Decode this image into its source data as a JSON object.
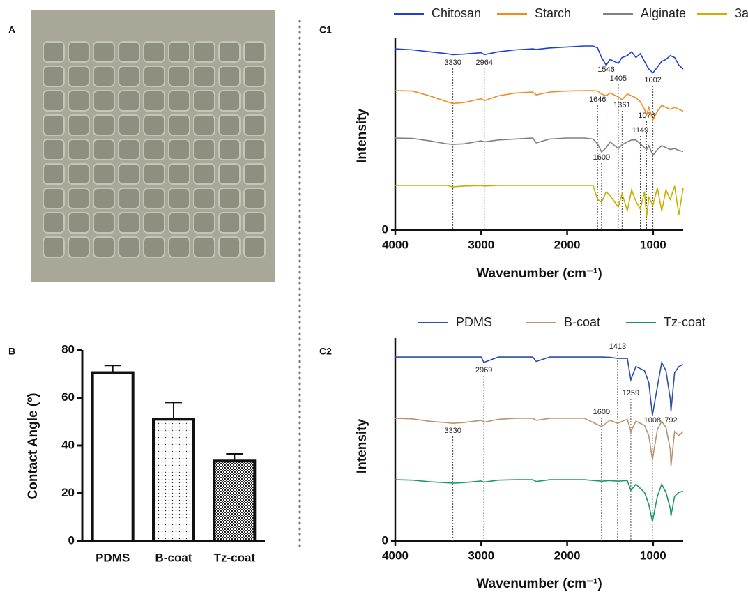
{
  "chart_data": [
    {
      "type": "bar",
      "panel": "B",
      "ylabel": "Contact Angle (º)",
      "categories": [
        "PDMS",
        "B-coat",
        "Tz-coat"
      ],
      "values": [
        70.5,
        51,
        33.5
      ],
      "errors": [
        3,
        7,
        3
      ],
      "ylim": [
        0,
        80
      ],
      "yticks": [
        0,
        20,
        40,
        60,
        80
      ]
    },
    {
      "type": "line",
      "panel": "C1",
      "xlabel": "Wavenumber (cm⁻¹)",
      "ylabel": "Intensity",
      "xlim": [
        4000,
        650
      ],
      "xticks": [
        4000,
        3000,
        2000,
        1000
      ],
      "ylim": [
        0,
        100
      ],
      "yticks": [
        0
      ],
      "annotations": [
        3330,
        2964,
        1546,
        1405,
        1002,
        1646,
        1361,
        1076,
        1149,
        1600
      ],
      "x": [
        4000,
        3800,
        3600,
        3400,
        3330,
        3200,
        3000,
        2964,
        2800,
        2600,
        2400,
        2360,
        2200,
        2000,
        1800,
        1700,
        1646,
        1600,
        1546,
        1500,
        1405,
        1361,
        1300,
        1250,
        1200,
        1149,
        1100,
        1076,
        1050,
        1002,
        950,
        900,
        850,
        800,
        750,
        700,
        650
      ],
      "series": [
        {
          "name": "Chitosan",
          "color": "#1d3fd6",
          "values": [
            94.5,
            94,
            93,
            92,
            91.5,
            91.8,
            92.5,
            91.5,
            93,
            94,
            94.5,
            94.2,
            95,
            95.5,
            96,
            96,
            95,
            90,
            86,
            89,
            87,
            90,
            91,
            93,
            90,
            92,
            88,
            86,
            84,
            82,
            85,
            88,
            89,
            91,
            90,
            86,
            84
          ]
        },
        {
          "name": "Starch",
          "color": "#f28a22",
          "values": [
            72.7,
            72.5,
            70,
            67,
            66,
            66.5,
            68.5,
            67.5,
            70,
            71.5,
            72,
            70.5,
            72,
            72.5,
            72.7,
            72.7,
            72.5,
            71,
            70,
            71.5,
            69.5,
            68,
            71,
            70,
            69,
            67,
            63,
            60,
            64,
            57.5,
            62,
            65,
            64,
            63,
            64,
            63,
            62
          ]
        },
        {
          "name": "Alginate",
          "color": "#808080",
          "values": [
            48,
            47.8,
            46.5,
            45,
            44.7,
            45,
            46.5,
            46,
            47,
            47.5,
            48,
            45.5,
            47.5,
            48,
            48,
            47.5,
            45,
            40.7,
            43,
            46,
            42.5,
            44.5,
            46,
            47,
            47,
            45,
            43,
            42,
            44,
            39,
            42,
            44,
            43,
            42,
            42.5,
            41.5,
            41
          ]
        },
        {
          "name": "3a",
          "color": "#c7b000",
          "values": [
            23.3,
            23.3,
            23.3,
            23.3,
            22.5,
            23,
            23.2,
            23,
            23.3,
            23.3,
            23.3,
            23.3,
            23.3,
            23.3,
            23.3,
            23.3,
            16,
            14.5,
            20,
            18,
            12,
            19,
            10,
            21,
            15,
            11,
            20,
            7,
            17,
            13,
            22,
            10,
            21,
            16,
            23,
            8,
            22
          ]
        }
      ]
    },
    {
      "type": "line",
      "panel": "C2",
      "xlabel": "Wavenumber (cm⁻¹)",
      "ylabel": "Intensity",
      "xlim": [
        4000,
        650
      ],
      "xticks": [
        4000,
        3000,
        2000,
        1000
      ],
      "ylim": [
        0,
        100
      ],
      "yticks": [
        0
      ],
      "annotations": [
        2969,
        1413,
        1259,
        1600,
        1008,
        792,
        3330
      ],
      "x": [
        4000,
        3800,
        3600,
        3400,
        3330,
        3200,
        3000,
        2969,
        2800,
        2600,
        2400,
        2360,
        2200,
        2000,
        1800,
        1600,
        1500,
        1413,
        1300,
        1259,
        1200,
        1100,
        1050,
        1008,
        950,
        900,
        850,
        800,
        792,
        750,
        700,
        650
      ],
      "series": [
        {
          "name": "PDMS",
          "color": "#2a4fa6",
          "values": [
            90.7,
            90.7,
            90.7,
            90.7,
            90.7,
            90.7,
            90.7,
            88,
            90.7,
            90.7,
            90.7,
            88.5,
            90.7,
            90.7,
            90.7,
            90.7,
            90.5,
            90,
            90,
            79.4,
            86,
            84,
            78,
            62,
            76,
            88,
            84,
            70,
            64,
            83,
            86,
            87
          ]
        },
        {
          "name": "B-coat",
          "color": "#b8936e",
          "values": [
            60.5,
            60.2,
            59,
            58.3,
            58,
            58.4,
            59.5,
            58.5,
            60,
            60.5,
            60.5,
            59.5,
            60.5,
            60.5,
            60.5,
            56.4,
            59.5,
            58,
            60,
            54,
            59,
            57,
            52,
            40,
            55,
            59,
            56,
            45,
            37,
            54,
            52,
            54
          ]
        },
        {
          "name": "Tz-coat",
          "color": "#1a9a62",
          "values": [
            30.2,
            30,
            29.2,
            28.7,
            28.5,
            28.8,
            29.6,
            29,
            30,
            30.2,
            30.2,
            29.3,
            30.2,
            30.2,
            30.2,
            29.5,
            29.8,
            29.5,
            29.8,
            25,
            28,
            24,
            18,
            9.6,
            22,
            28,
            24,
            16,
            12.4,
            22,
            24,
            24.5
          ]
        }
      ]
    }
  ],
  "photo_panel": "A"
}
